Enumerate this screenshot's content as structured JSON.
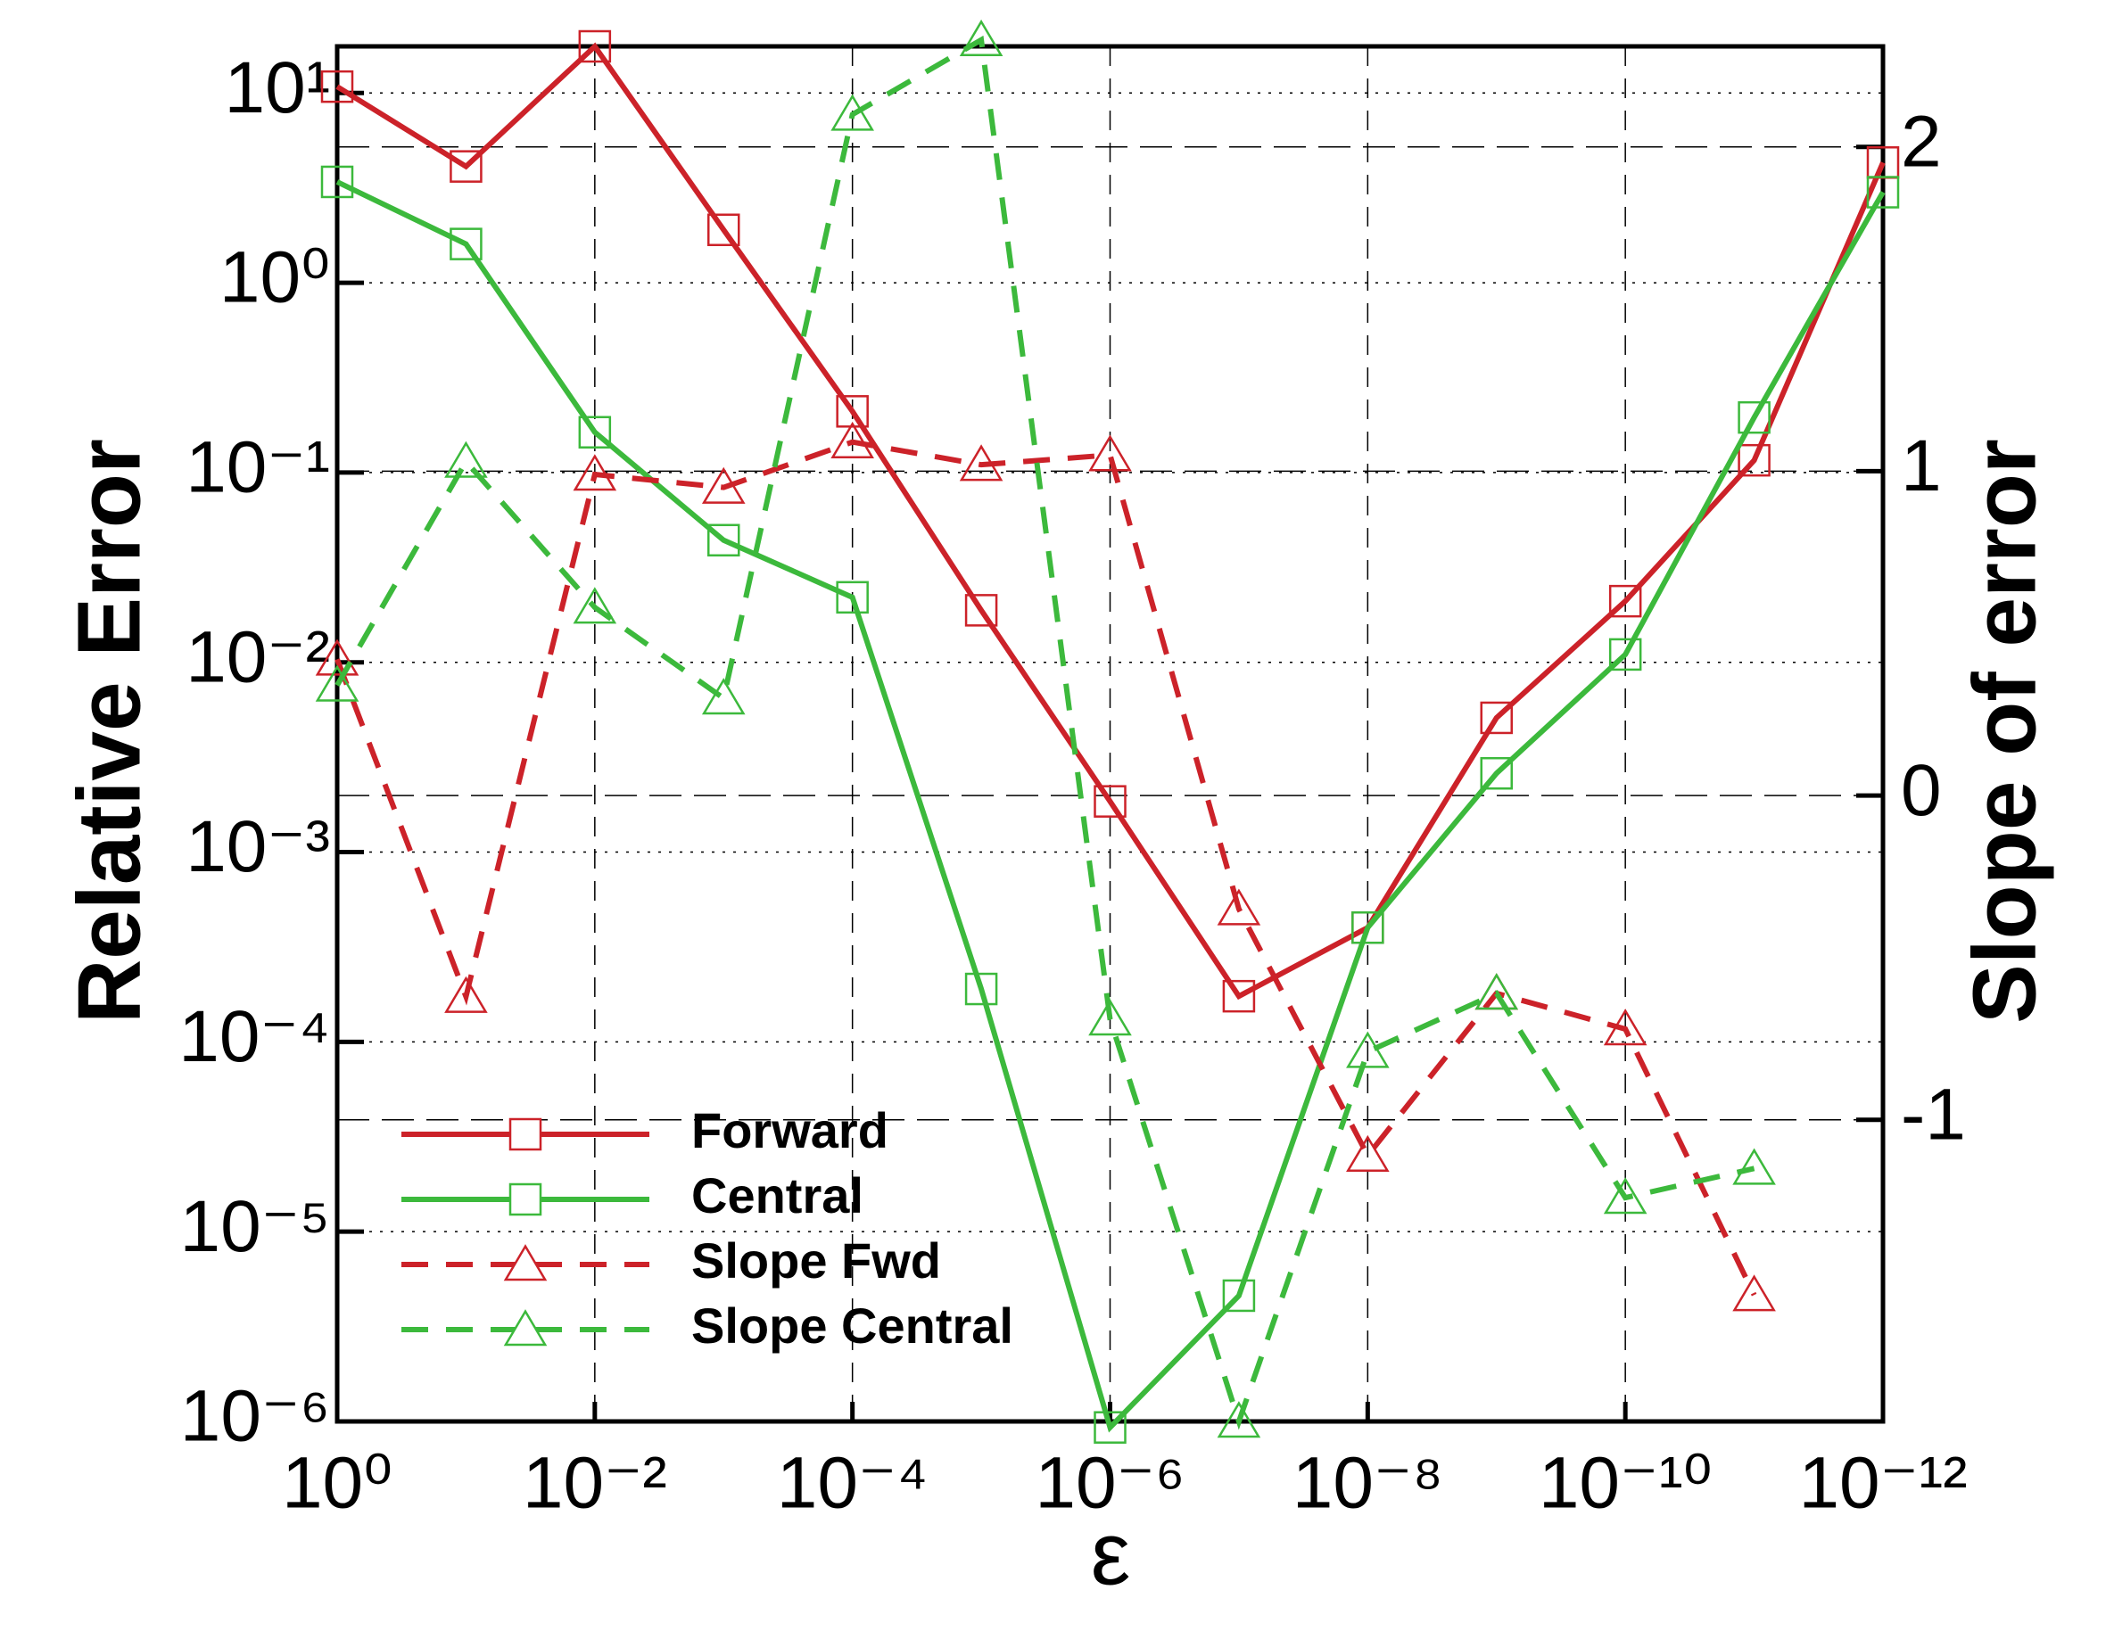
{
  "chart_data": {
    "type": "line",
    "xlabel": "ε",
    "ylabel": "Relative Error",
    "y2label": "Slope of error",
    "x": [
      1,
      0.1,
      0.01,
      0.001,
      0.0001,
      1e-05,
      1e-06,
      1e-07,
      1e-08,
      1e-09,
      1e-10,
      1e-11,
      1e-12
    ],
    "xlog": true,
    "ylog": true,
    "xlim": [
      1,
      1e-12
    ],
    "xticks": [
      {
        "value": 1,
        "label": "10⁰"
      },
      {
        "value": 0.01,
        "label": "10⁻²"
      },
      {
        "value": 0.0001,
        "label": "10⁻⁴"
      },
      {
        "value": 1e-06,
        "label": "10⁻⁶"
      },
      {
        "value": 1e-08,
        "label": "10⁻⁸"
      },
      {
        "value": 1e-10,
        "label": "10⁻¹⁰"
      },
      {
        "value": 1e-12,
        "label": "10⁻¹²"
      }
    ],
    "ylim": [
      1e-06,
      17.6
    ],
    "yticks": [
      {
        "value": 10,
        "label": "10¹"
      },
      {
        "value": 1,
        "label": "10⁰"
      },
      {
        "value": 0.1,
        "label": "10⁻¹"
      },
      {
        "value": 0.01,
        "label": "10⁻²"
      },
      {
        "value": 0.001,
        "label": "10⁻³"
      },
      {
        "value": 0.0001,
        "label": "10⁻⁴"
      },
      {
        "value": 1e-05,
        "label": "10⁻⁵"
      },
      {
        "value": 1e-06,
        "label": "10⁻⁶"
      }
    ],
    "y2lim": [
      -1.93,
      2.31
    ],
    "y2ticks": [
      -1,
      0,
      1,
      2
    ],
    "grid": true,
    "legend": "lower left",
    "series": [
      {
        "name": "Forward",
        "color": "#cc2229",
        "marker": "square",
        "dash": false,
        "values": [
          10.8,
          4.1,
          17.6,
          1.9,
          0.21,
          0.0188,
          0.00185,
          0.000174,
          0.0004,
          0.0051,
          0.021,
          0.116,
          4.3
        ]
      },
      {
        "name": "Central",
        "color": "#3cb93c",
        "marker": "square",
        "dash": false,
        "values": [
          3.4,
          1.6,
          0.163,
          0.044,
          0.022,
          0.00019,
          9.3e-07,
          4.6e-06,
          0.0004,
          0.0026,
          0.011,
          0.195,
          3.0
        ]
      },
      {
        "name": "Slope Fwd",
        "color": "#cc2229",
        "marker": "triangle",
        "dash": true,
        "axis": "y2",
        "values": [
          0.42,
          -0.62,
          0.99,
          0.95,
          1.09,
          1.02,
          1.05,
          -0.35,
          -1.11,
          -0.61,
          -0.72,
          -1.54,
          null
        ]
      },
      {
        "name": "Slope Central",
        "color": "#3cb93c",
        "marker": "triangle",
        "dash": true,
        "axis": "y2",
        "values": [
          0.34,
          1.03,
          0.58,
          0.3,
          2.1,
          2.33,
          -0.69,
          -1.93,
          -0.79,
          -0.61,
          -1.24,
          -1.15,
          null
        ]
      }
    ]
  }
}
